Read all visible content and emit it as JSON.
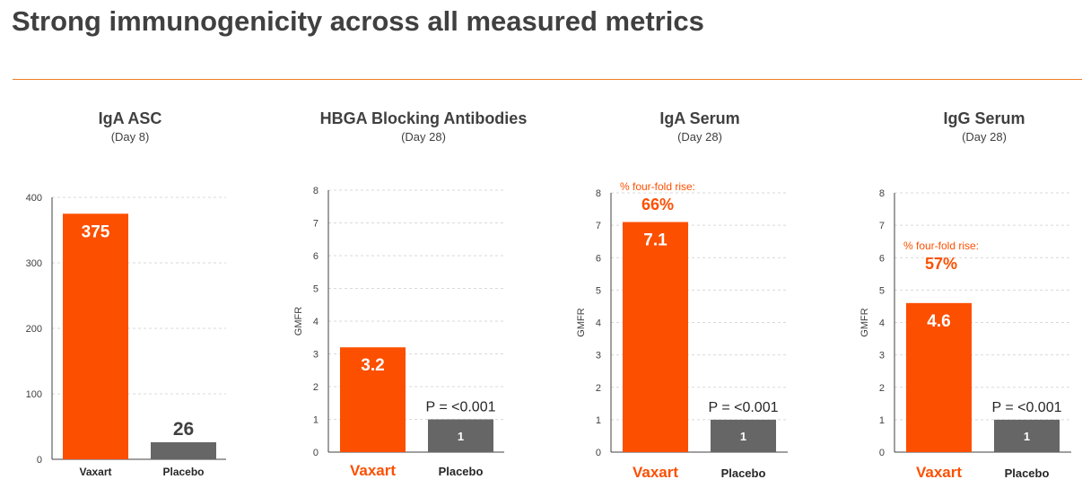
{
  "page": {
    "title": "Strong immunogenicity across all measured metrics"
  },
  "colors": {
    "vaxart": "#fc4f00",
    "placebo": "#666666",
    "rule": "#f07e26",
    "text": "#404040"
  },
  "chart_data": [
    {
      "type": "bar",
      "title": "IgA ASC",
      "subtitle": "(Day 8)",
      "ylabel": "",
      "ylim": [
        0,
        400
      ],
      "yticks": [
        0,
        100,
        200,
        300,
        400
      ],
      "grid": true,
      "categories": [
        "Vaxart",
        "Placebo"
      ],
      "values": [
        375,
        26
      ],
      "data_labels": [
        "375",
        "26"
      ],
      "p_value": "",
      "four_fold_label": "",
      "four_fold_value": ""
    },
    {
      "type": "bar",
      "title": "HBGA Blocking Antibodies",
      "subtitle": "(Day 28)",
      "ylabel": "GMFR",
      "ylim": [
        0,
        8
      ],
      "yticks": [
        0,
        1,
        2,
        3,
        4,
        5,
        6,
        7,
        8
      ],
      "grid": true,
      "categories": [
        "Vaxart",
        "Placebo"
      ],
      "values": [
        3.2,
        1
      ],
      "data_labels": [
        "3.2",
        "1"
      ],
      "p_value": "P = <0.001",
      "four_fold_label": "",
      "four_fold_value": ""
    },
    {
      "type": "bar",
      "title": "IgA Serum",
      "subtitle": "(Day 28)",
      "ylabel": "GMFR",
      "ylim": [
        0,
        8
      ],
      "yticks": [
        0,
        1,
        2,
        3,
        4,
        5,
        6,
        7,
        8
      ],
      "grid": true,
      "categories": [
        "Vaxart",
        "Placebo"
      ],
      "values": [
        7.1,
        1
      ],
      "data_labels": [
        "7.1",
        "1"
      ],
      "p_value": "P = <0.001",
      "four_fold_label": "% four-fold rise:",
      "four_fold_value": "66%"
    },
    {
      "type": "bar",
      "title": "IgG Serum",
      "subtitle": "(Day 28)",
      "ylabel": "GMFR",
      "ylim": [
        0,
        8
      ],
      "yticks": [
        0,
        1,
        2,
        3,
        4,
        5,
        6,
        7,
        8
      ],
      "grid": true,
      "categories": [
        "Vaxart",
        "Placebo"
      ],
      "values": [
        4.6,
        1
      ],
      "data_labels": [
        "4.6",
        "1"
      ],
      "p_value": "P = <0.001",
      "four_fold_label": "% four-fold rise:",
      "four_fold_value": "57%"
    }
  ]
}
